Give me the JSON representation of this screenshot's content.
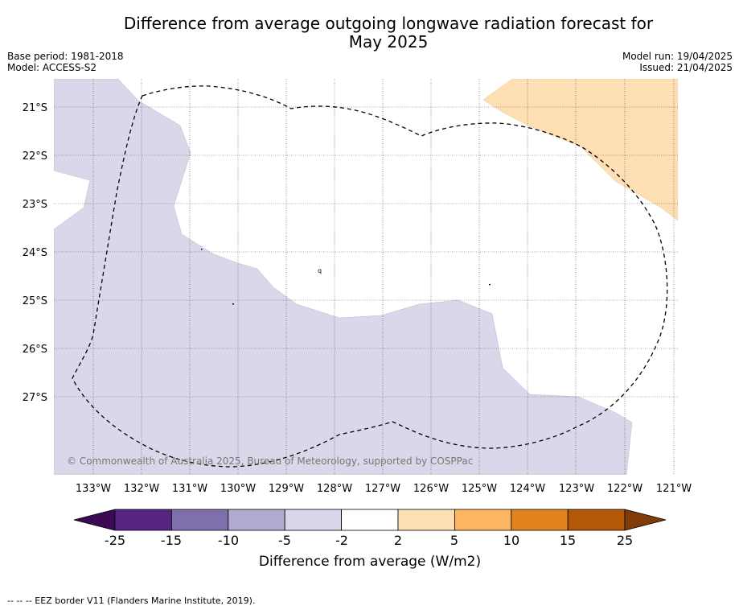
{
  "title_line1": "Difference from average outgoing longwave radiation forecast for",
  "title_line2": "May 2025",
  "base_period": "Base period: 1981-2018",
  "model": "Model: ACCESS-S2",
  "model_run": "Model run: 19/04/2025",
  "issued": "Issued: 21/04/2025",
  "map": {
    "lon_ticks": [
      "133°W",
      "132°W",
      "131°W",
      "130°W",
      "129°W",
      "128°W",
      "127°W",
      "126°W",
      "125°W",
      "124°W",
      "123°W",
      "122°W",
      "121°W"
    ],
    "lat_ticks": [
      "21°S",
      "22°S",
      "23°S",
      "24°S",
      "25°S",
      "26°S",
      "27°S"
    ],
    "copyright": "© Commonwealth of Australia 2025, Bureau of Meteorology, supported by COSPPac",
    "small_label": "q",
    "colors": {
      "purple_light": "#d8d8ea",
      "orange_light": "#fddfb3",
      "eez_line": "#000000"
    }
  },
  "colorbar": {
    "ticks": [
      "-25",
      "-15",
      "-10",
      "-5",
      "-2",
      "2",
      "5",
      "10",
      "15",
      "25"
    ],
    "colors": [
      "#3b0a52",
      "#582483",
      "#7f6fac",
      "#b0a9d2",
      "#d8d8ea",
      "#ffffff",
      "#fddfb3",
      "#fdb660",
      "#e2841b",
      "#b35806",
      "#7f3b08"
    ],
    "label": "Difference from average (W/m2)"
  },
  "footer": "--  --  -- EEZ border V11 (Flanders Marine Institute, 2019)."
}
